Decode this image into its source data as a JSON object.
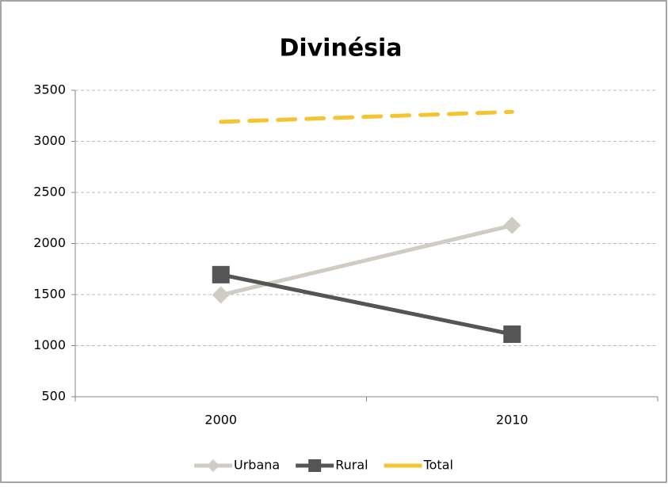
{
  "chart_data": {
    "type": "line",
    "title": "Divinésia",
    "categories": [
      "2000",
      "2010"
    ],
    "series": [
      {
        "name": "Urbana",
        "color": "#d0cbc3",
        "marker": "diamond",
        "dashed": false,
        "values": [
          1496,
          2177
        ]
      },
      {
        "name": "Rural",
        "color": "#555555",
        "marker": "square",
        "dashed": false,
        "values": [
          1695,
          1112
        ]
      },
      {
        "name": "Total",
        "color": "#f5c431",
        "marker": "none",
        "dashed": true,
        "values": [
          3191,
          3289
        ]
      }
    ],
    "ylim": [
      500,
      3500
    ],
    "yticks": [
      500,
      1000,
      1500,
      2000,
      2500,
      3000,
      3500
    ],
    "grid": true,
    "legend": "bottom"
  }
}
